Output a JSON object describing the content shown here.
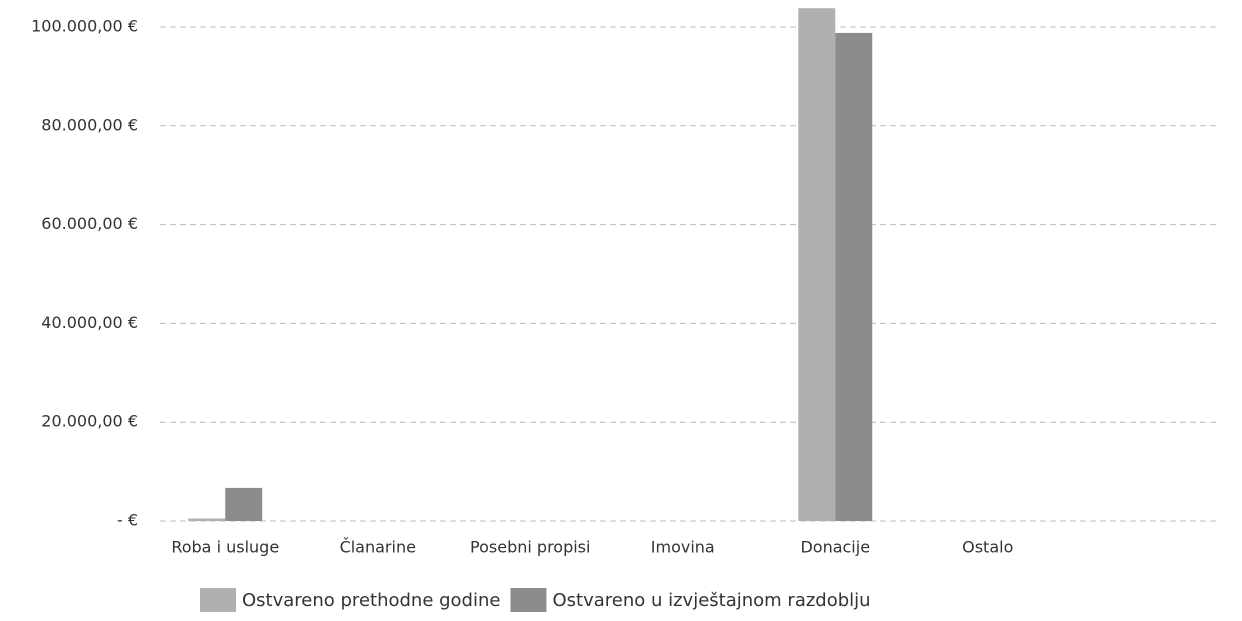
{
  "chart_data": {
    "type": "bar",
    "categories": [
      "Roba i usluge",
      "Članarine",
      "Posebni propisi",
      "Imovina",
      "Donacije",
      "Ostalo"
    ],
    "series": [
      {
        "name": "Ostvareno prethodne godine",
        "color": "#b0b0b0",
        "values": [
          500,
          0,
          0,
          0,
          103800,
          0
        ]
      },
      {
        "name": "Ostvareno u izvještajnom razdoblju",
        "color": "#8c8c8c",
        "values": [
          6700,
          0,
          0,
          0,
          98800,
          0
        ]
      }
    ],
    "ylim": [
      0,
      100000
    ],
    "yticks": [
      {
        "value": 0,
        "label": "-  €"
      },
      {
        "value": 20000,
        "label": "20.000,00 €"
      },
      {
        "value": 40000,
        "label": "40.000,00 €"
      },
      {
        "value": 60000,
        "label": "60.000,00 €"
      },
      {
        "value": 80000,
        "label": "80.000,00 €"
      },
      {
        "value": 100000,
        "label": "100.000,00 €"
      }
    ],
    "grid": true,
    "legend": "bottom"
  }
}
